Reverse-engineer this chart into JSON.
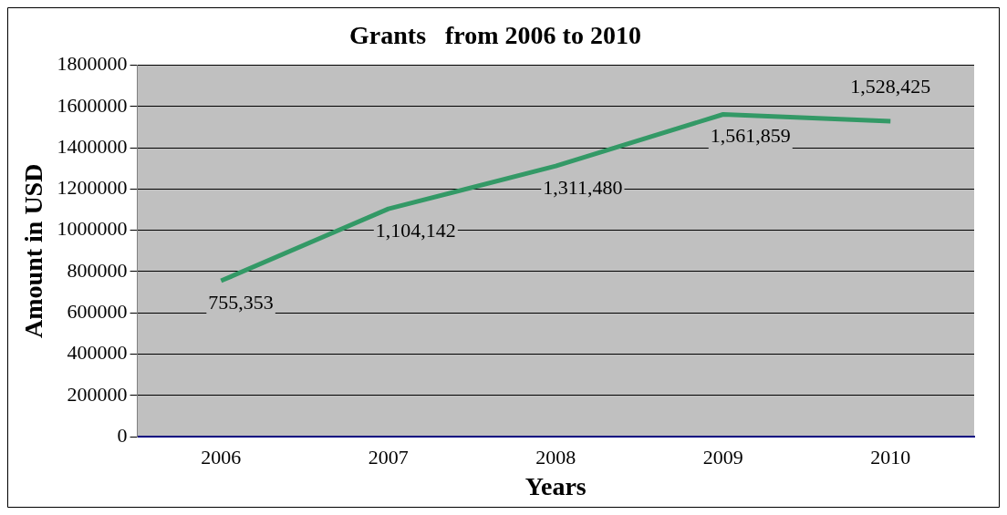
{
  "chart_data": {
    "type": "line",
    "title": "Grants   from 2006 to 2010",
    "xlabel": "Years",
    "ylabel": "Amount in USD",
    "categories": [
      "2006",
      "2007",
      "2008",
      "2009",
      "2010"
    ],
    "series": [
      {
        "color": "#339966",
        "values": [
          755353,
          1104142,
          1311480,
          1561859,
          1528425
        ],
        "value_labels": [
          "755,353",
          "1,104,142",
          "1,311,480",
          "1,561,859",
          "1,528,425"
        ]
      }
    ],
    "ylim": [
      0,
      1800000
    ],
    "yticks": [
      0,
      200000,
      400000,
      600000,
      800000,
      1000000,
      1200000,
      1400000,
      1600000,
      1800000
    ],
    "grid": "y",
    "legend": false,
    "marker": "none",
    "line_style": "solid"
  }
}
